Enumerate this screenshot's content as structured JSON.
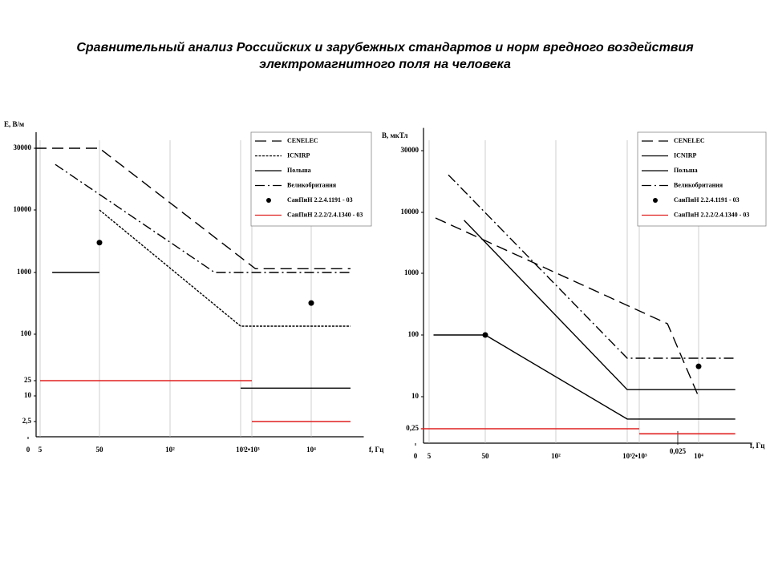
{
  "title": [
    "Сравнительный анализ Российских и зарубежных стандартов и норм вредного воздействия",
    "электромагнитного поля на человека"
  ],
  "chart_data": [
    {
      "type": "line",
      "ylabel": "E, В/м",
      "xlabel": "f, Гц",
      "log": true,
      "grid": true,
      "xlim": [
        0,
        30000
      ],
      "ylim": [
        1,
        40000
      ],
      "xticks": [
        0,
        5,
        50,
        {
          "value": 100,
          "label": "10²"
        },
        {
          "value": 1000,
          "label": "10³"
        },
        {
          "value": 2000,
          "label": "2•10³"
        },
        {
          "value": 10000,
          "label": "10⁴"
        }
      ],
      "yticks": [
        {
          "value": 2.5,
          "label": "2,5"
        },
        10,
        25,
        100,
        1000,
        10000,
        30000
      ],
      "series": [
        {
          "name": "CENELEC",
          "color": "#000000",
          "dash": "long",
          "x": [
            3,
            50,
            2200,
            29000
          ],
          "values": [
            30000,
            30000,
            1150,
            1150
          ]
        },
        {
          "name": "ICNIRP",
          "color": "#000000",
          "dash": "short",
          "x": [
            50,
            1000,
            29000
          ],
          "values": [
            10000,
            135,
            135
          ]
        },
        {
          "name": "Польша",
          "color": "#000000",
          "dash": "solid",
          "x": [
            8,
            50,
            1000,
            1000,
            29000
          ],
          "values": [
            1000,
            1000,
            null,
            16,
            16
          ]
        },
        {
          "name": "Великобритания",
          "color": "#000000",
          "dash": "dashdot",
          "x": [
            9,
            430,
            29000
          ],
          "values": [
            22500,
            1000,
            1000
          ]
        },
        {
          "name": "СанПиН 2.2.4.1191 - 03",
          "color": "#000000",
          "dash": "none",
          "marker": "dot",
          "x": [
            50,
            10000
          ],
          "values": [
            3000,
            320
          ]
        },
        {
          "name": "СанПиН 2.2.2/2.4.1340 - 03",
          "color": "#e02020",
          "dash": "solid",
          "x": [
            5,
            2000,
            2000,
            2000,
            29000
          ],
          "values": [
            25,
            25,
            null,
            2.5,
            2.5
          ]
        }
      ]
    },
    {
      "type": "line",
      "ylabel": "B, мкТл",
      "xlabel": "f, Гц",
      "log": true,
      "grid": true,
      "annotation": "0,025",
      "xlim": [
        0,
        30000
      ],
      "ylim": [
        0.1,
        45000
      ],
      "xticks": [
        0,
        5,
        50,
        {
          "value": 100,
          "label": "10²"
        },
        {
          "value": 1000,
          "label": "10³"
        },
        {
          "value": 2000,
          "label": "2•10³"
        },
        {
          "value": 10000,
          "label": "10⁴"
        }
      ],
      "yticks": [
        {
          "value": 0.25,
          "label": "0,25"
        },
        10,
        100,
        1000,
        10000,
        30000
      ],
      "series": [
        {
          "name": "CENELEC",
          "color": "#000000",
          "dash": "long",
          "x": [
            6.5,
            4300,
            10000
          ],
          "values": [
            8100,
            152,
            10
          ]
        },
        {
          "name": "ICNIRP",
          "color": "#000000",
          "dash": "solid",
          "x": [
            21,
            1000,
            27000
          ],
          "values": [
            7400,
            13,
            13
          ]
        },
        {
          "name": "Польша",
          "color": "#000000",
          "dash": "solid",
          "x": [
            6,
            50,
            1000,
            27000
          ],
          "values": [
            100,
            100,
            0.76,
            0.76
          ]
        },
        {
          "name": "Великобритания",
          "color": "#000000",
          "dash": "dashdot",
          "x": [
            11,
            1000,
            27000
          ],
          "values": [
            19500,
            42,
            42
          ]
        },
        {
          "name": "СанПиН 2.2.4.1191 - 03",
          "color": "#000000",
          "dash": "none",
          "marker": "dot",
          "x": [
            50,
            10000
          ],
          "values": [
            100,
            31
          ]
        },
        {
          "name": "СанПиН 2.2.2/2.4.1340 - 03",
          "color": "#e02020",
          "dash": "solid",
          "x": [
            2,
            2000,
            2000,
            2000,
            27000
          ],
          "values": [
            0.25,
            0.25,
            null,
            0.14,
            0.14
          ]
        }
      ]
    }
  ]
}
